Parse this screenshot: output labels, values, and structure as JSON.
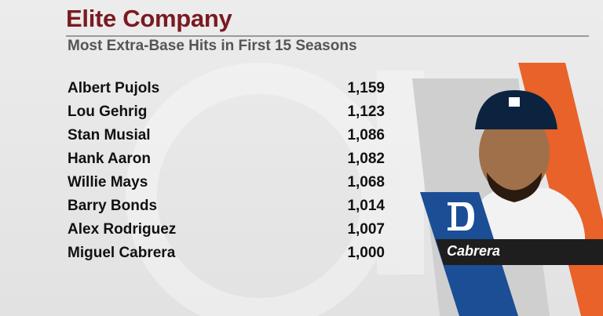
{
  "title": "Elite Company",
  "subtitle": "Most Extra-Base Hits in First 15 Seasons",
  "table": {
    "rows": [
      [
        "Albert Pujols",
        "1,159"
      ],
      [
        "Lou Gehrig",
        "1,123"
      ],
      [
        "Stan Musial",
        "1,086"
      ],
      [
        "Hank Aaron",
        "1,082"
      ],
      [
        "Willie Mays",
        "1,068"
      ],
      [
        "Barry Bonds",
        "1,014"
      ],
      [
        "Alex Rodriguez",
        "1,007"
      ],
      [
        "Miguel Cabrera",
        "1,000"
      ]
    ]
  },
  "player_tag": "Cabrera"
}
